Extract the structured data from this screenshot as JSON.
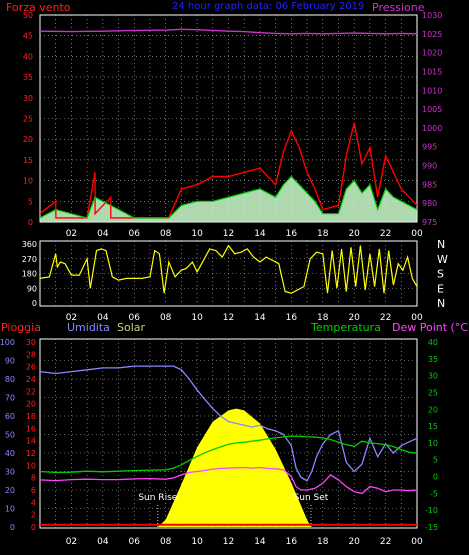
{
  "chart_data": [
    {
      "type": "line",
      "title": "24 hour graph data: 06 February 2019",
      "left_axis_label": "Forza vento",
      "right_axis_label": "Pressione",
      "left_ticks": [
        "0",
        "5",
        "10",
        "15",
        "20",
        "25",
        "30",
        "35",
        "40",
        "45",
        "50"
      ],
      "right_ticks": [
        "975",
        "980",
        "985",
        "990",
        "995",
        "1000",
        "1005",
        "1010",
        "1015",
        "1020",
        "1025",
        "1030"
      ],
      "x_ticks": [
        "02",
        "04",
        "06",
        "08",
        "10",
        "12",
        "14",
        "16",
        "18",
        "20",
        "22",
        "00"
      ],
      "colors": {
        "left_label": "#ff2020",
        "right_label": "#cc33cc",
        "title": "#2222ff",
        "gust": "#ff0000",
        "avg": "#00cc00",
        "wind_fill": "#ccffcc",
        "pressure": "#cc33cc"
      },
      "pressure": {
        "x": [
          0,
          2,
          4,
          6,
          8,
          9,
          10,
          11,
          12,
          13,
          14,
          15,
          16,
          17,
          18,
          19,
          20,
          21,
          22,
          23,
          24
        ],
        "y": [
          1025.7,
          1025.6,
          1025.7,
          1025.9,
          1026.0,
          1026.2,
          1026.1,
          1025.9,
          1025.7,
          1025.6,
          1025.3,
          1025.1,
          1025.0,
          1025.1,
          1025.0,
          1025.1,
          1025.2,
          1025.1,
          1025.0,
          1025.1,
          1025.0
        ]
      },
      "wind_gust": {
        "x": [
          0,
          1,
          1.01,
          3,
          3.5,
          3.51,
          4.5,
          4.51,
          6,
          8.2,
          9,
          10,
          11,
          12,
          13,
          14,
          15,
          15.5,
          16,
          16.5,
          17,
          17.5,
          18,
          19,
          19.5,
          20,
          20.5,
          21,
          21.5,
          22,
          22.5,
          23,
          24
        ],
        "y": [
          2,
          5,
          1,
          1,
          12,
          2,
          6,
          1,
          1,
          1,
          8,
          9,
          11,
          11,
          12,
          13,
          9,
          17,
          22,
          18,
          12,
          8,
          3,
          4,
          16,
          24,
          14,
          18,
          6,
          16,
          12,
          8,
          4
        ]
      },
      "wind_avg": {
        "x": [
          0,
          1,
          3,
          3.5,
          4.5,
          6,
          8.2,
          9,
          10,
          11,
          12,
          13,
          14,
          15,
          15.5,
          16,
          16.5,
          17,
          17.5,
          18,
          19,
          19.5,
          20,
          20.5,
          21,
          21.5,
          22,
          22.5,
          23,
          24
        ],
        "y": [
          1,
          3,
          1,
          6,
          4,
          1,
          1,
          4,
          5,
          5,
          6,
          7,
          8,
          6,
          9,
          11,
          9,
          7,
          5,
          2,
          2,
          8,
          10,
          7,
          9,
          3,
          8,
          6,
          5,
          3
        ]
      }
    },
    {
      "type": "line",
      "direction_labels": [
        "N",
        "W",
        "S",
        "E",
        "N"
      ],
      "left_ticks": [
        "0",
        "90",
        "180",
        "270",
        "360"
      ],
      "x_ticks": [
        "02",
        "04",
        "06",
        "08",
        "10",
        "12",
        "14",
        "16",
        "18",
        "20",
        "22",
        "00"
      ],
      "colors": {
        "direction": "#ffff00"
      },
      "direction": {
        "x": [
          0,
          0.3,
          0.6,
          1,
          1.1,
          1.3,
          1.6,
          2,
          2.5,
          3,
          3.2,
          3.6,
          3.9,
          4.2,
          4.6,
          5,
          5.5,
          6,
          6.5,
          7,
          7.3,
          7.6,
          7.9,
          8.2,
          8.6,
          9,
          9.3,
          9.7,
          10,
          10.4,
          10.8,
          11.2,
          11.6,
          12,
          12.4,
          12.8,
          13.2,
          13.6,
          14,
          14.4,
          14.8,
          15.2,
          15.6,
          16,
          16.4,
          16.8,
          17.2,
          17.6,
          18,
          18.3,
          18.6,
          18.9,
          19.2,
          19.5,
          19.8,
          20.1,
          20.4,
          20.7,
          21,
          21.3,
          21.6,
          21.9,
          22.2,
          22.5,
          22.8,
          23.1,
          23.4,
          23.7,
          24
        ],
        "y": [
          150,
          155,
          160,
          300,
          220,
          250,
          240,
          170,
          170,
          270,
          90,
          320,
          330,
          320,
          160,
          140,
          150,
          150,
          150,
          160,
          320,
          300,
          60,
          250,
          160,
          200,
          210,
          250,
          190,
          260,
          330,
          320,
          280,
          350,
          300,
          310,
          330,
          280,
          250,
          280,
          260,
          240,
          70,
          60,
          80,
          100,
          270,
          310,
          300,
          60,
          320,
          90,
          330,
          70,
          340,
          100,
          350,
          80,
          300,
          100,
          330,
          60,
          320,
          110,
          240,
          200,
          280,
          150,
          100
        ]
      }
    },
    {
      "type": "line",
      "label_pioggia": "Pioggia",
      "label_umidita": "Umidita",
      "label_solar": "Solar",
      "label_temperatura": "Temperatura",
      "label_dewpoint": "Dew Point (°C)",
      "humidity_ticks": [
        "0",
        "10",
        "20",
        "30",
        "40",
        "50",
        "60",
        "70",
        "80",
        "90",
        "100"
      ],
      "rain_ticks": [
        "0",
        "2",
        "4",
        "6",
        "8",
        "10",
        "12",
        "14",
        "16",
        "18",
        "20",
        "22",
        "24",
        "26",
        "28",
        "30"
      ],
      "temp_ticks": [
        "-15",
        "-10",
        "-5",
        "0",
        "5",
        "10",
        "15",
        "20",
        "25",
        "30",
        "35",
        "40"
      ],
      "x_ticks": [
        "02",
        "04",
        "06",
        "08",
        "10",
        "12",
        "14",
        "16",
        "18",
        "20",
        "22",
        "00"
      ],
      "sun_rise_label": "Sun Rise",
      "sun_set_label": "Sun Set",
      "sun_rise_hour": 7.5,
      "sun_set_hour": 17.25,
      "colors": {
        "pioggia": "#ff2020",
        "umidita": "#8888ff",
        "solar": "#cccc88",
        "temperatura": "#00cc00",
        "dewpoint": "#ff44ff",
        "humidity": "#8888ff",
        "temperature": "#00cc00",
        "dewpoint_line": "#ff44ff",
        "solar_fill": "#ffff00",
        "rain": "#ff0000",
        "sun_marker": "#ffffff"
      },
      "humidity": {
        "x": [
          0,
          1,
          2,
          3,
          4,
          5,
          6,
          7,
          8,
          8.5,
          9,
          9.5,
          10,
          10.5,
          11,
          11.5,
          12,
          12.5,
          13,
          13.5,
          14,
          14.5,
          15,
          15.5,
          16,
          16.3,
          16.6,
          17,
          17.3,
          17.6,
          18,
          18.5,
          19,
          19.5,
          20,
          20.5,
          21,
          21.5,
          22,
          22.5,
          23,
          23.5,
          24
        ],
        "y": [
          84,
          83,
          84,
          85,
          86,
          86,
          87,
          87,
          87,
          87,
          85,
          80,
          74,
          69,
          64,
          60,
          57,
          56,
          55,
          54,
          55,
          53,
          52,
          50,
          44,
          32,
          27,
          25,
          30,
          38,
          45,
          50,
          52,
          35,
          30,
          34,
          48,
          38,
          45,
          40,
          44,
          46,
          48
        ]
      },
      "temperature": {
        "x": [
          0,
          1,
          2,
          3,
          4,
          5,
          6,
          7,
          8,
          8.5,
          9,
          9.5,
          10,
          10.5,
          11,
          11.5,
          12,
          12.5,
          13,
          13.5,
          14,
          14.5,
          15,
          15.5,
          16,
          16.5,
          17,
          17.5,
          18,
          18.5,
          19,
          19.5,
          20,
          20.5,
          21,
          21.5,
          22,
          22.5,
          23,
          23.5,
          24
        ],
        "y": [
          1.5,
          1.2,
          1.3,
          1.6,
          1.4,
          1.6,
          1.8,
          1.9,
          2.0,
          2.5,
          3.5,
          4.8,
          6.0,
          7.1,
          8.0,
          8.8,
          9.6,
          10.0,
          10.2,
          10.5,
          10.8,
          11.2,
          11.5,
          11.8,
          12.0,
          12.0,
          11.8,
          11.7,
          11.5,
          11.0,
          10.2,
          9.5,
          9.0,
          10.5,
          10.0,
          9.8,
          9.5,
          8.9,
          8.0,
          7.2,
          7.0
        ]
      },
      "dewpoint": {
        "x": [
          0,
          1,
          2,
          3,
          4,
          5,
          6,
          7,
          8,
          8.5,
          9,
          9.5,
          10,
          10.5,
          11,
          11.5,
          12,
          12.5,
          13,
          13.5,
          14,
          14.5,
          15,
          15.5,
          16,
          16.3,
          16.6,
          17,
          17.5,
          18,
          18.5,
          19,
          19.5,
          20,
          20.5,
          21,
          21.5,
          22,
          22.5,
          23,
          23.5,
          24
        ],
        "y": [
          -1.0,
          -1.2,
          -0.9,
          -0.8,
          -0.9,
          -0.9,
          -0.7,
          -0.6,
          -0.8,
          -0.4,
          0.5,
          1.2,
          1.5,
          1.8,
          2.2,
          2.4,
          2.5,
          2.6,
          2.7,
          2.5,
          2.7,
          2.4,
          2.3,
          2.0,
          0.0,
          -3.0,
          -4.0,
          -4.0,
          -3.5,
          -2.0,
          0.5,
          -1.0,
          -3.0,
          -4.5,
          -5.0,
          -3.0,
          -3.5,
          -4.5,
          -4.0,
          -4.0,
          -4.2,
          -4.0
        ]
      },
      "solar": {
        "x": [
          7.5,
          8,
          9,
          10,
          11,
          12,
          12.5,
          13,
          14,
          15,
          16,
          17,
          17.25
        ],
        "y": [
          0,
          40,
          230,
          430,
          570,
          630,
          640,
          630,
          560,
          420,
          240,
          40,
          0
        ]
      },
      "solar_scale_max": 1000,
      "rain": {
        "x": [
          0,
          24
        ],
        "y": [
          0.2,
          0.2
        ]
      }
    }
  ]
}
